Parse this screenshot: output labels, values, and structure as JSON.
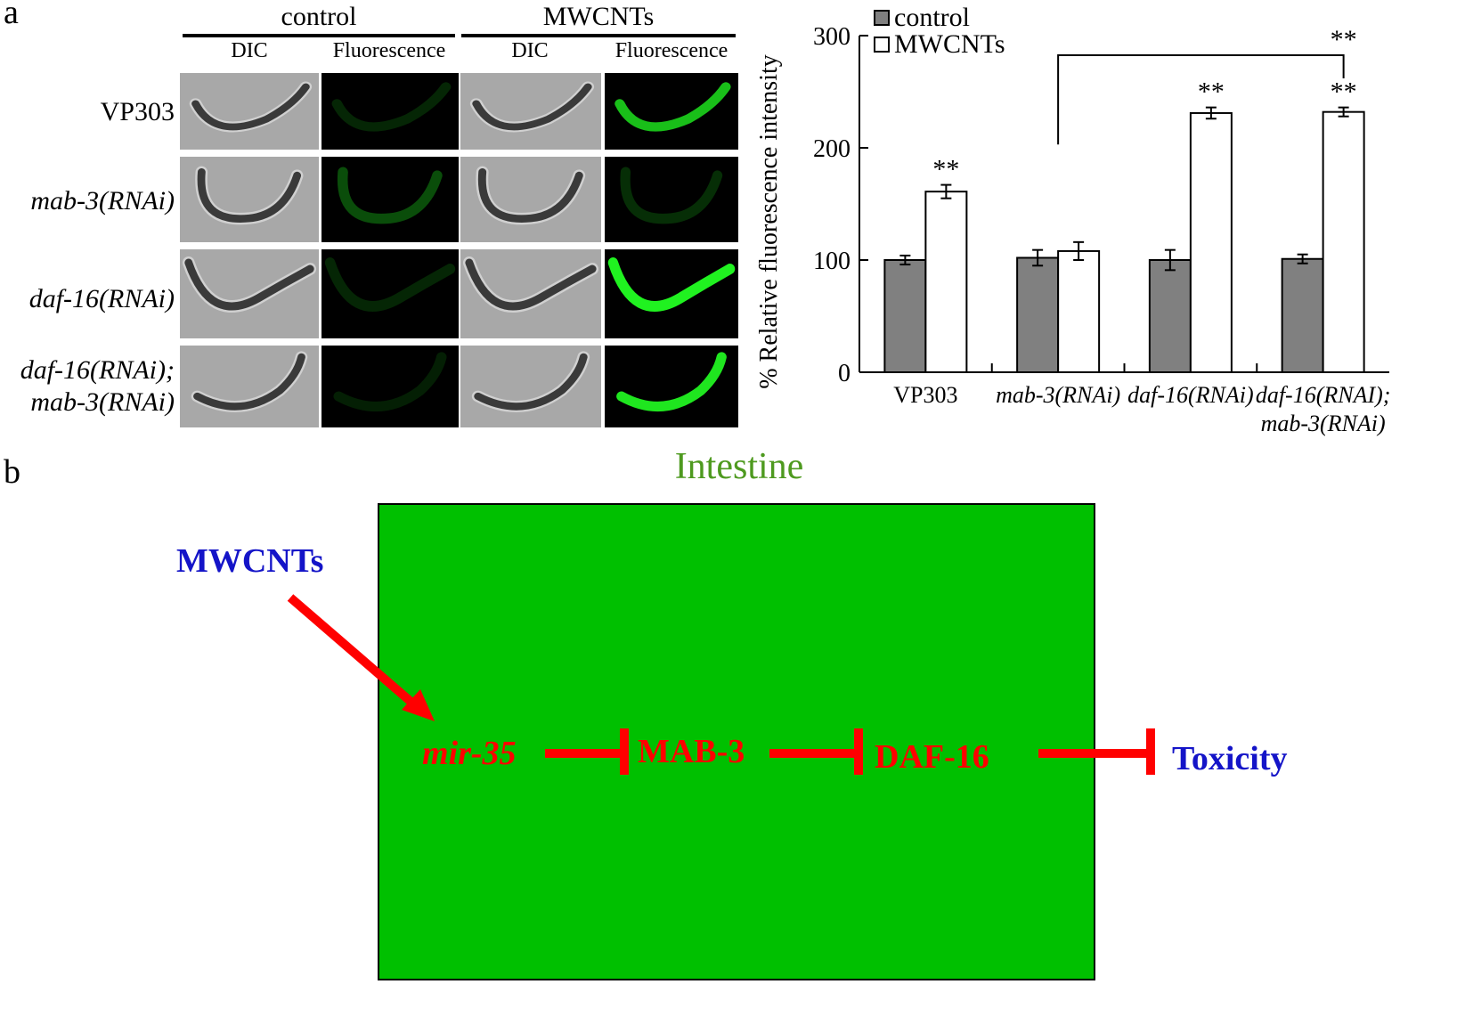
{
  "panel_a": {
    "letter": "a",
    "groups": [
      {
        "label": "control",
        "columns": [
          "DIC",
          "Fluorescence"
        ]
      },
      {
        "label": "MWCNTs",
        "columns": [
          "DIC",
          "Fluorescence"
        ]
      }
    ],
    "row_labels": [
      {
        "lines": [
          "VP303"
        ],
        "italic": false
      },
      {
        "lines": [
          "mab-3(RNAi)"
        ],
        "italic": true
      },
      {
        "lines": [
          "daf-16(RNAi)"
        ],
        "italic": true
      },
      {
        "lines": [
          "daf-16(RNAi);",
          "mab-3(RNAi)"
        ],
        "italic": true
      }
    ],
    "fluorescence_level": [
      {
        "control": 0.15,
        "mwcnts": 0.75
      },
      {
        "control": 0.3,
        "mwcnts": 0.18
      },
      {
        "control": 0.15,
        "mwcnts": 0.95
      },
      {
        "control": 0.12,
        "mwcnts": 0.9
      }
    ],
    "colors": {
      "worm_dic": "#3a3a3a",
      "fluorescence": "#22ff22",
      "dic_bg": "#a8a8a8"
    }
  },
  "chart_data": {
    "type": "bar",
    "categories": [
      "VP303",
      "mab-3(RNAi)",
      "daf-16(RNAi)",
      "daf-16(RNAI);\nmab-3(RNAi)"
    ],
    "category_italic": [
      false,
      true,
      true,
      true
    ],
    "series": [
      {
        "name": "control",
        "values": [
          100,
          102,
          100,
          101
        ],
        "errors": [
          4,
          7,
          9,
          4
        ],
        "color": "#808080"
      },
      {
        "name": "MWCNTs",
        "values": [
          161,
          108,
          231,
          232
        ],
        "errors": [
          6,
          8,
          5,
          4
        ],
        "color": "#ffffff"
      }
    ],
    "significance": [
      {
        "category": 0,
        "series": 1,
        "label": "**"
      },
      {
        "category": 2,
        "series": 1,
        "label": "**"
      },
      {
        "category": 3,
        "series": 1,
        "label": "**"
      }
    ],
    "bracket": {
      "from_category": 1,
      "to_category": 3,
      "label": "**"
    },
    "ylabel": "% Relative fluorescence intensity",
    "xlabel": "",
    "ylim": [
      0,
      300
    ],
    "yticks": [
      0,
      100,
      200,
      300
    ],
    "legend": "top-left",
    "grid": false
  },
  "panel_b": {
    "letter": "b",
    "title": "Intestine",
    "input": "MWCNTs",
    "nodes": [
      "mir-35",
      "MAB-3",
      "DAF-16"
    ],
    "output": "Toxicity",
    "colors": {
      "box": "#00c000",
      "arrow": "#ff0000",
      "node": "#ff0000",
      "external": "#1414c8",
      "title": "#4e9a1f"
    }
  }
}
